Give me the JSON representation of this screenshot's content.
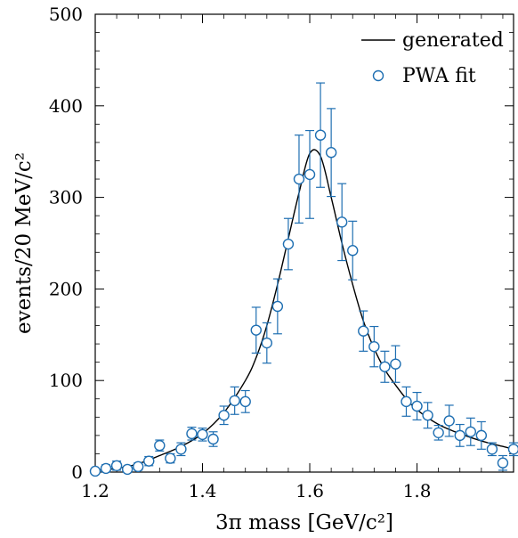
{
  "chart_data": {
    "type": "scatter",
    "xlabel": "3π mass [GeV/c²]",
    "ylabel": "events/20 MeV/c²",
    "xlim": [
      1.2,
      1.98
    ],
    "ylim": [
      0,
      500
    ],
    "x_ticks": [
      1.2,
      1.4,
      1.6,
      1.8
    ],
    "x_tick_labels": [
      "1.2",
      "1.4",
      "1.6",
      "1.8"
    ],
    "y_ticks": [
      0,
      100,
      200,
      300,
      400,
      500
    ],
    "y_tick_labels": [
      "0",
      "100",
      "200",
      "300",
      "400",
      "500"
    ],
    "legend_position": "top-right",
    "colors": {
      "points": "#1f6fb2",
      "curve": "#000000"
    },
    "series": [
      {
        "name": "generated",
        "type": "line",
        "x": [
          1.2,
          1.24,
          1.28,
          1.32,
          1.36,
          1.4,
          1.44,
          1.48,
          1.5,
          1.52,
          1.54,
          1.56,
          1.58,
          1.6,
          1.62,
          1.64,
          1.66,
          1.68,
          1.7,
          1.72,
          1.74,
          1.76,
          1.78,
          1.8,
          1.84,
          1.88,
          1.92,
          1.96,
          1.98
        ],
        "y": [
          2,
          4,
          9,
          18,
          28,
          42,
          65,
          100,
          125,
          160,
          205,
          255,
          305,
          348,
          345,
          300,
          250,
          205,
          165,
          135,
          112,
          95,
          80,
          68,
          52,
          42,
          34,
          28,
          25
        ]
      },
      {
        "name": "PWA fit",
        "type": "scatter",
        "x": [
          1.2,
          1.22,
          1.24,
          1.26,
          1.28,
          1.3,
          1.32,
          1.34,
          1.36,
          1.38,
          1.4,
          1.42,
          1.44,
          1.46,
          1.48,
          1.5,
          1.52,
          1.54,
          1.56,
          1.58,
          1.6,
          1.62,
          1.64,
          1.66,
          1.68,
          1.7,
          1.72,
          1.74,
          1.76,
          1.78,
          1.8,
          1.82,
          1.84,
          1.86,
          1.88,
          1.9,
          1.92,
          1.94,
          1.96,
          1.98
        ],
        "y": [
          1,
          4,
          7,
          3,
          6,
          12,
          29,
          15,
          25,
          42,
          41,
          36,
          62,
          78,
          77,
          155,
          141,
          181,
          249,
          320,
          325,
          368,
          349,
          273,
          242,
          154,
          137,
          115,
          118,
          77,
          72,
          62,
          43,
          56,
          40,
          44,
          40,
          25,
          10,
          25
        ],
        "yerr": [
          2,
          4,
          5,
          3,
          4,
          5,
          6,
          5,
          7,
          7,
          7,
          8,
          10,
          15,
          12,
          25,
          22,
          30,
          28,
          48,
          48,
          57,
          48,
          42,
          32,
          22,
          22,
          17,
          20,
          16,
          15,
          14,
          8,
          17,
          12,
          15,
          15,
          7,
          8,
          7
        ]
      }
    ]
  }
}
